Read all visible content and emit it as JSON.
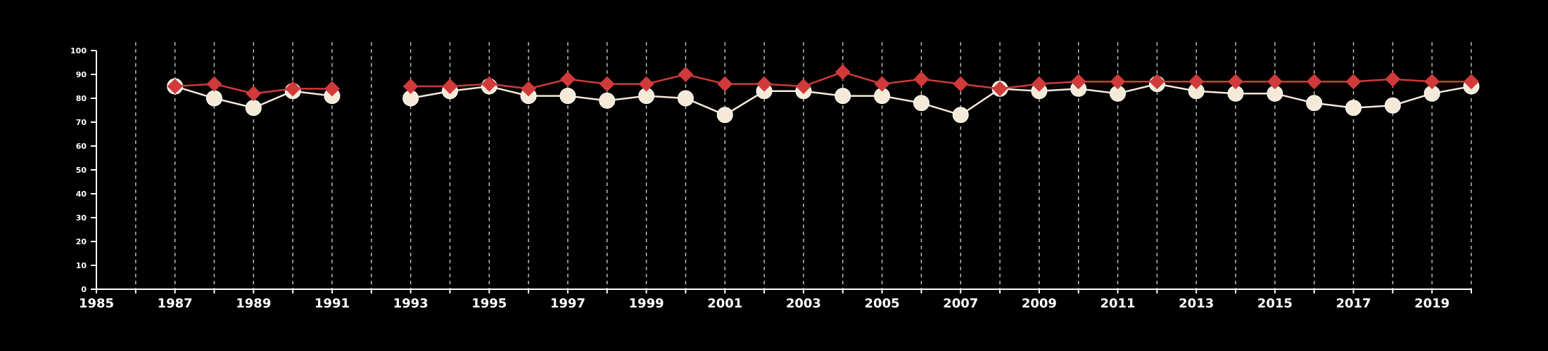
{
  "colors": {
    "background": "#000000",
    "axis": "#ffffff",
    "grid": "#bbbbbb",
    "series_a": "#d03a3a",
    "series_b": "#f5ead8"
  },
  "chart_data": {
    "type": "line",
    "title": "",
    "xlabel": "",
    "ylabel": "",
    "xlim": [
      1985,
      2020
    ],
    "ylim": [
      0,
      100
    ],
    "x_ticks": [
      1985,
      1987,
      1989,
      1991,
      1993,
      1995,
      1997,
      1999,
      2001,
      2003,
      2005,
      2007,
      2009,
      2011,
      2013,
      2015,
      2017,
      2019
    ],
    "y_ticks": [
      0,
      10,
      20,
      30,
      40,
      50,
      60,
      70,
      80,
      90,
      100
    ],
    "vertical_grid": "dashed, yearly 1986-2020",
    "legend": "none",
    "x": [
      1987,
      1988,
      1989,
      1990,
      1991,
      1992,
      1993,
      1994,
      1995,
      1996,
      1997,
      1998,
      1999,
      2000,
      2001,
      2002,
      2003,
      2004,
      2005,
      2006,
      2007,
      2008,
      2009,
      2010,
      2011,
      2012,
      2013,
      2014,
      2015,
      2016,
      2017,
      2018,
      2019,
      2020
    ],
    "series": [
      {
        "marker": "diamond",
        "color": "#d03a3a",
        "values": [
          85,
          86,
          82,
          84,
          84,
          null,
          85,
          85,
          86,
          84,
          88,
          86,
          86,
          90,
          86,
          86,
          85,
          91,
          86,
          88,
          86,
          84,
          86,
          87,
          87,
          87,
          87,
          87,
          87,
          87,
          87,
          88,
          87,
          87
        ]
      },
      {
        "marker": "circle",
        "color": "#f5ead8",
        "values": [
          85,
          80,
          76,
          83,
          81,
          null,
          80,
          83,
          85,
          81,
          81,
          79,
          81,
          80,
          73,
          83,
          83,
          81,
          81,
          78,
          73,
          84,
          83,
          84,
          82,
          86,
          83,
          82,
          82,
          78,
          76,
          77,
          82,
          85
        ]
      }
    ]
  }
}
